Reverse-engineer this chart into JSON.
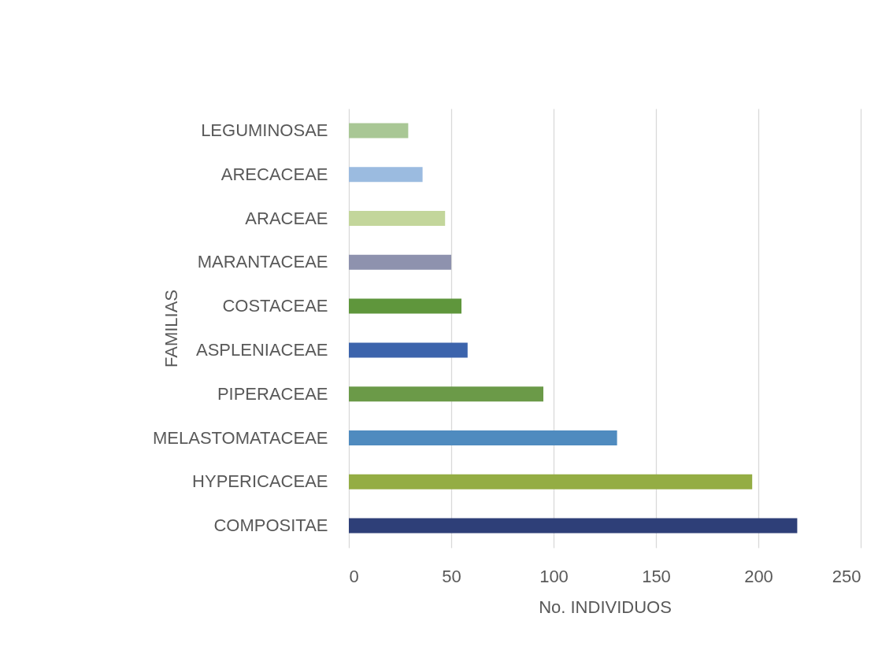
{
  "chart_data": {
    "type": "bar",
    "orientation": "horizontal",
    "xlabel": "No. INDIVIDUOS",
    "ylabel": "FAMILIAS",
    "categories": [
      "LEGUMINOSAE",
      "ARECACEAE",
      "ARACEAE",
      "MARANTACEAE",
      "COSTACEAE",
      "ASPLENIACEAE",
      "PIPERACEAE",
      "MELASTOMATACEAE",
      "HYPERICACEAE",
      "COMPOSITAE"
    ],
    "values": [
      29,
      36,
      47,
      50,
      55,
      58,
      95,
      131,
      197,
      219
    ],
    "colors": [
      "#a9c795",
      "#9bbbe0",
      "#c3d69b",
      "#8e92ae",
      "#5f963c",
      "#3c64ac",
      "#6b9a48",
      "#4f8bbf",
      "#94ad44",
      "#2e3f78"
    ],
    "xlim": [
      0,
      250
    ],
    "xticks": [
      0,
      50,
      100,
      150,
      200,
      250
    ],
    "grid": "x"
  }
}
